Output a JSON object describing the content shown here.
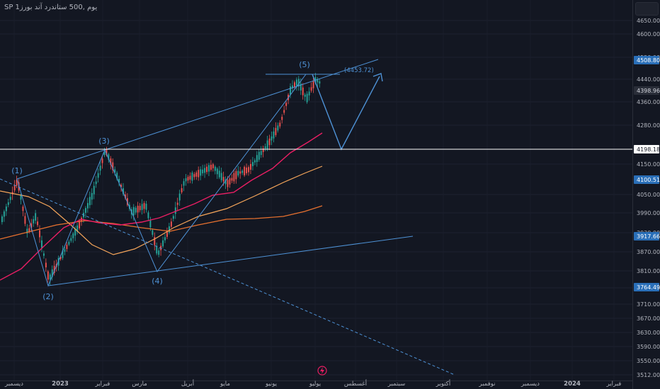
{
  "chart_data": {
    "type": "candlestick",
    "title": "SP 1يوم ,500 ستاندرد آند بورز",
    "y_axis": {
      "ticks": [
        4650.0,
        4600.0,
        4520.0,
        4440.0,
        4360.0,
        4280.0,
        4150.0,
        4050.0,
        3990.0,
        3930.0,
        3870.0,
        3810.0,
        3750.0,
        3710.0,
        3670.0,
        3630.0,
        3590.0,
        3550.0,
        3512.0
      ],
      "price_labels": [
        {
          "value": "4508.80",
          "style": "filled-blue"
        },
        {
          "value": "4398.96",
          "style": "dark"
        },
        {
          "value": "4198.18",
          "style": "white"
        },
        {
          "value": "4100.51",
          "style": "filled-blue"
        },
        {
          "value": "3917.66",
          "style": "filled-blue"
        },
        {
          "value": "3764.49",
          "style": "filled-blue"
        }
      ]
    },
    "x_axis": {
      "labels": [
        {
          "text": "ديسمبر",
          "bold": false
        },
        {
          "text": "2023",
          "bold": true
        },
        {
          "text": "فبراير",
          "bold": false
        },
        {
          "text": "مارس",
          "bold": false
        },
        {
          "text": "أبريل",
          "bold": false
        },
        {
          "text": "مايو",
          "bold": false
        },
        {
          "text": "يونيو",
          "bold": false
        },
        {
          "text": "يوليو",
          "bold": false
        },
        {
          "text": "أغسطس",
          "bold": false
        },
        {
          "text": "سبتمبر",
          "bold": false
        },
        {
          "text": "أكتوبر",
          "bold": false
        },
        {
          "text": "نوفمبر",
          "bold": false
        },
        {
          "text": "ديسمبر",
          "bold": false
        },
        {
          "text": "2024",
          "bold": true
        },
        {
          "text": "فبراير",
          "bold": false
        }
      ]
    },
    "wave_labels": [
      "(1)",
      "(2)",
      "(3)",
      "(4)",
      "(5)"
    ],
    "annotation": "(4453.72)",
    "moving_averages": [
      {
        "name": "ma-short",
        "color": "#e91e63"
      },
      {
        "name": "ma-mid",
        "color": "#f5a55a"
      },
      {
        "name": "ma-long",
        "color": "#e8712f"
      }
    ],
    "colors": {
      "up": "#26a69a",
      "down": "#ef5350",
      "wave": "#4e92d6",
      "line": "#ffffff"
    }
  }
}
